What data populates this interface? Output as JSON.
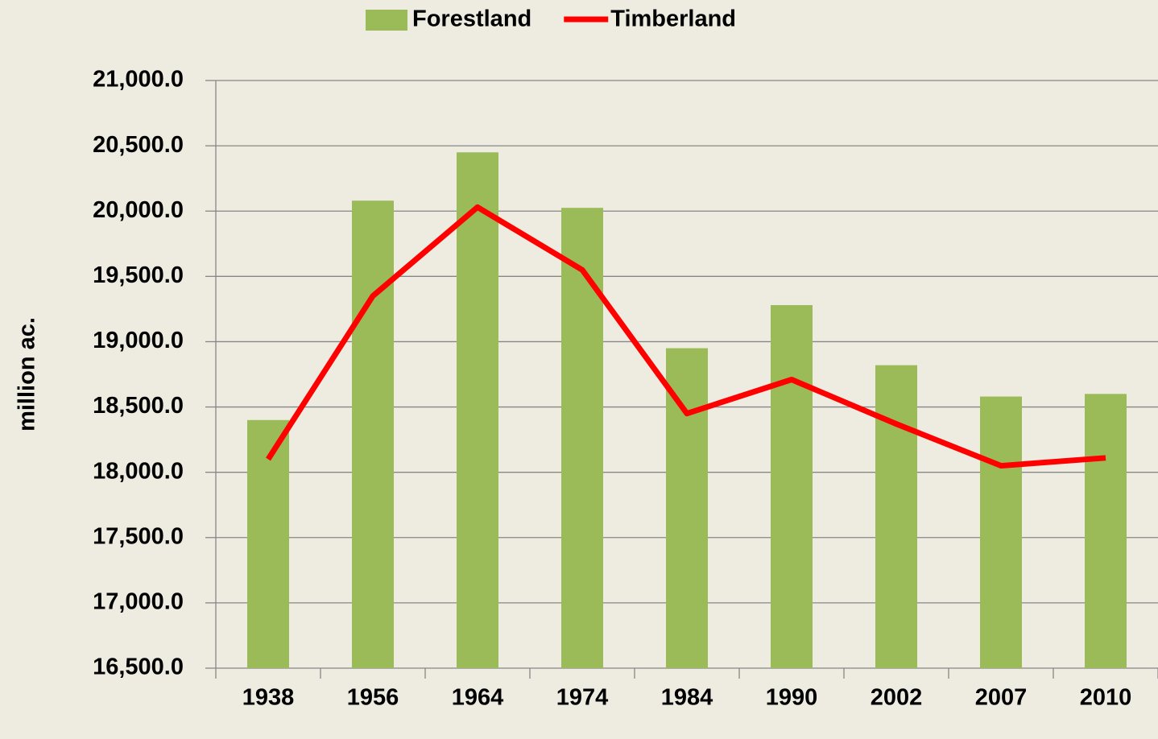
{
  "chart_data": {
    "type": "bar",
    "y_label": "million ac.",
    "categories": [
      "1938",
      "1956",
      "1964",
      "1974",
      "1984",
      "1990",
      "2002",
      "2007",
      "2010"
    ],
    "series": [
      {
        "name": "Forestland",
        "type": "bar",
        "color": "#9bbb59",
        "values": [
          18400,
          20080,
          20450,
          20025,
          18950,
          19280,
          18820,
          18580,
          18600
        ]
      },
      {
        "name": "Timberland",
        "type": "line",
        "color": "#ff0000",
        "values": [
          18100,
          19350,
          20030,
          19550,
          18450,
          18710,
          18370,
          18050,
          18110
        ]
      }
    ],
    "ylim": [
      16500,
      21000
    ],
    "yticks": [
      {
        "value": 16500,
        "label": "16,500.0"
      },
      {
        "value": 17000,
        "label": "17,000.0"
      },
      {
        "value": 17500,
        "label": "17,500.0"
      },
      {
        "value": 18000,
        "label": "18,000.0"
      },
      {
        "value": 18500,
        "label": "18,500.0"
      },
      {
        "value": 19000,
        "label": "19,000.0"
      },
      {
        "value": 19500,
        "label": "19,500.0"
      },
      {
        "value": 20000,
        "label": "20,000.0"
      },
      {
        "value": 20500,
        "label": "20,500.0"
      },
      {
        "value": 21000,
        "label": "21,000.0"
      }
    ],
    "grid": true,
    "legend": "top"
  }
}
